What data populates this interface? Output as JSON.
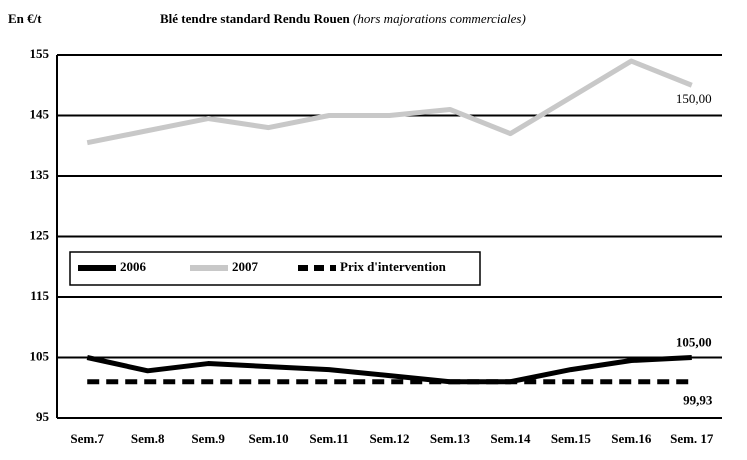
{
  "chart_data": {
    "type": "line",
    "title": "Blé tendre standard Rendu Rouen",
    "subtitle": "(hors majorations commerciales)",
    "y_label": "En €/t",
    "categories": [
      "Sem.7",
      "Sem.8",
      "Sem.9",
      "Sem.10",
      "Sem.11",
      "Sem.12",
      "Sem.13",
      "Sem.14",
      "Sem.15",
      "Sem.16",
      "Sem. 17"
    ],
    "series": [
      {
        "name": "2006",
        "color": "#000000",
        "line_style": "solid",
        "values": [
          105,
          102.8,
          104,
          103.5,
          103,
          102,
          101,
          101,
          103,
          104.5,
          105
        ],
        "value_labels": [
          null,
          null,
          null,
          null,
          null,
          null,
          null,
          null,
          null,
          null,
          "105,00"
        ]
      },
      {
        "name": "2007",
        "color": "#c8c8c8",
        "line_style": "solid",
        "values": [
          140.5,
          142.5,
          144.5,
          143,
          145,
          145,
          146,
          142,
          148,
          154,
          150
        ],
        "value_labels": [
          null,
          null,
          null,
          null,
          null,
          null,
          null,
          null,
          null,
          null,
          "150,00"
        ]
      },
      {
        "name": "Prix d'intervention",
        "color": "#000000",
        "line_style": "dashed",
        "values": [
          101,
          101,
          101,
          101,
          101,
          101,
          101,
          101,
          101,
          101,
          101
        ]
      }
    ],
    "annotations": [
      {
        "text": "99,93"
      }
    ],
    "ylim": [
      95,
      155
    ],
    "yticks": [
      95,
      105,
      115,
      125,
      135,
      145,
      155
    ],
    "grid": true
  }
}
